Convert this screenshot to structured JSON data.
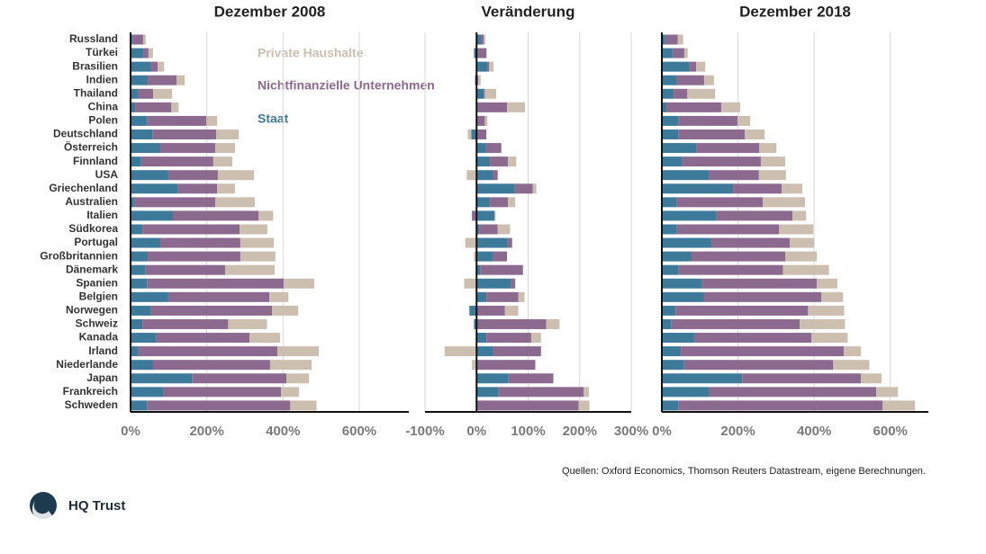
{
  "chart_data": [
    {
      "type": "bar",
      "orientation": "horizontal",
      "stacked": true,
      "title": "Dezember 2008",
      "categories": [
        "Russland",
        "Türkei",
        "Brasilien",
        "Indien",
        "Thailand",
        "China",
        "Polen",
        "Deutschland",
        "Österreich",
        "Finnland",
        "USA",
        "Griechenland",
        "Australien",
        "Italien",
        "Südkorea",
        "Portugal",
        "Großbritannien",
        "Dänemark",
        "Spanien",
        "Belgien",
        "Norwegen",
        "Schweiz",
        "Kanada",
        "Irland",
        "Niederlande",
        "Japan",
        "Frankreich",
        "Schweden"
      ],
      "series": [
        {
          "name": "Staat",
          "color": "#3d7a9a",
          "values": [
            5,
            35,
            52,
            45,
            19,
            12,
            43,
            57,
            78,
            28,
            99,
            123,
            9,
            111,
            31,
            78,
            45,
            38,
            43,
            99,
            52,
            31,
            66,
            19,
            59,
            161,
            85,
            43
          ]
        },
        {
          "name": "Nichtfinanzielle  Unternehmen",
          "color": "#8c6a8f",
          "values": [
            28,
            12,
            19,
            76,
            40,
            95,
            156,
            168,
            144,
            189,
            130,
            104,
            213,
            225,
            255,
            210,
            243,
            210,
            359,
            265,
            319,
            225,
            246,
            366,
            307,
            248,
            310,
            376
          ]
        },
        {
          "name": "Private Haushalte",
          "color": "#cdbfb0",
          "values": [
            7,
            12,
            17,
            21,
            50,
            19,
            28,
            59,
            52,
            50,
            95,
            47,
            104,
            38,
            73,
            88,
            92,
            130,
            80,
            50,
            69,
            102,
            80,
            109,
            109,
            59,
            47,
            69
          ]
        }
      ],
      "xlim": [
        0,
        730
      ],
      "xticks": [
        {
          "value": 0,
          "label": "0%"
        },
        {
          "value": 200,
          "label": "200%"
        },
        {
          "value": 400,
          "label": "400%"
        },
        {
          "value": 600,
          "label": "600%"
        }
      ],
      "grid": true
    },
    {
      "type": "bar",
      "orientation": "horizontal",
      "stacked": true,
      "title": "Veränderung",
      "series": [
        {
          "color": "#3d7a9a",
          "values": [
            9,
            -5,
            22,
            -3,
            14,
            2,
            2,
            -10,
            17,
            26,
            31,
            73,
            26,
            35,
            5,
            59,
            31,
            7,
            66,
            19,
            -14,
            -5,
            19,
            31,
            2,
            62,
            42,
            2
          ]
        },
        {
          "color": "#8c6a8f",
          "values": [
            5,
            19,
            2,
            3,
            2,
            57,
            14,
            19,
            31,
            35,
            10,
            36,
            35,
            -9,
            36,
            10,
            28,
            83,
            9,
            62,
            55,
            135,
            87,
            94,
            112,
            87,
            166,
            196
          ]
        },
        {
          "color": "#cdbfb0",
          "values": [
            3,
            1,
            9,
            5,
            22,
            35,
            5,
            -7,
            0,
            16,
            -19,
            7,
            14,
            2,
            24,
            -22,
            -5,
            -2,
            -24,
            12,
            26,
            26,
            19,
            -62,
            -9,
            0,
            10,
            21
          ]
        }
      ],
      "xlim": [
        -100,
        300
      ],
      "xticks": [
        {
          "value": -100,
          "label": "-100%"
        },
        {
          "value": 0,
          "label": "0%"
        },
        {
          "value": 100,
          "label": "100%"
        },
        {
          "value": 200,
          "label": "200%"
        },
        {
          "value": 300,
          "label": "300%"
        }
      ],
      "grid": true
    },
    {
      "type": "bar",
      "orientation": "horizontal",
      "stacked": true,
      "title": "Dezember 2018",
      "series": [
        {
          "color": "#3d7a9a",
          "values": [
            9,
            28,
            71,
            40,
            31,
            12,
            43,
            43,
            90,
            54,
            125,
            187,
            38,
            142,
            38,
            130,
            78,
            43,
            104,
            111,
            36,
            24,
            85,
            50,
            57,
            211,
            123,
            43
          ]
        },
        {
          "color": "#8c6a8f",
          "values": [
            33,
            31,
            19,
            71,
            36,
            144,
            156,
            175,
            166,
            206,
            130,
            128,
            227,
            201,
            270,
            206,
            246,
            275,
            303,
            308,
            348,
            338,
            308,
            428,
            393,
            312,
            440,
            537
          ]
        },
        {
          "color": "#cdbfb0",
          "values": [
            14,
            9,
            24,
            26,
            73,
            50,
            33,
            52,
            45,
            64,
            71,
            54,
            111,
            36,
            90,
            64,
            83,
            121,
            54,
            57,
            95,
            119,
            95,
            45,
            95,
            54,
            57,
            85
          ]
        }
      ],
      "xlim": [
        0,
        700
      ],
      "xticks": [
        {
          "value": 0,
          "label": "0%"
        },
        {
          "value": 200,
          "label": "200%"
        },
        {
          "value": 400,
          "label": "400%"
        },
        {
          "value": 600,
          "label": "600%"
        }
      ],
      "grid": true
    }
  ],
  "source": "Quellen: Oxford Economics, Thomson Reuters Datastream, eigene Berechnungen.",
  "logo_text": "HQ Trust"
}
